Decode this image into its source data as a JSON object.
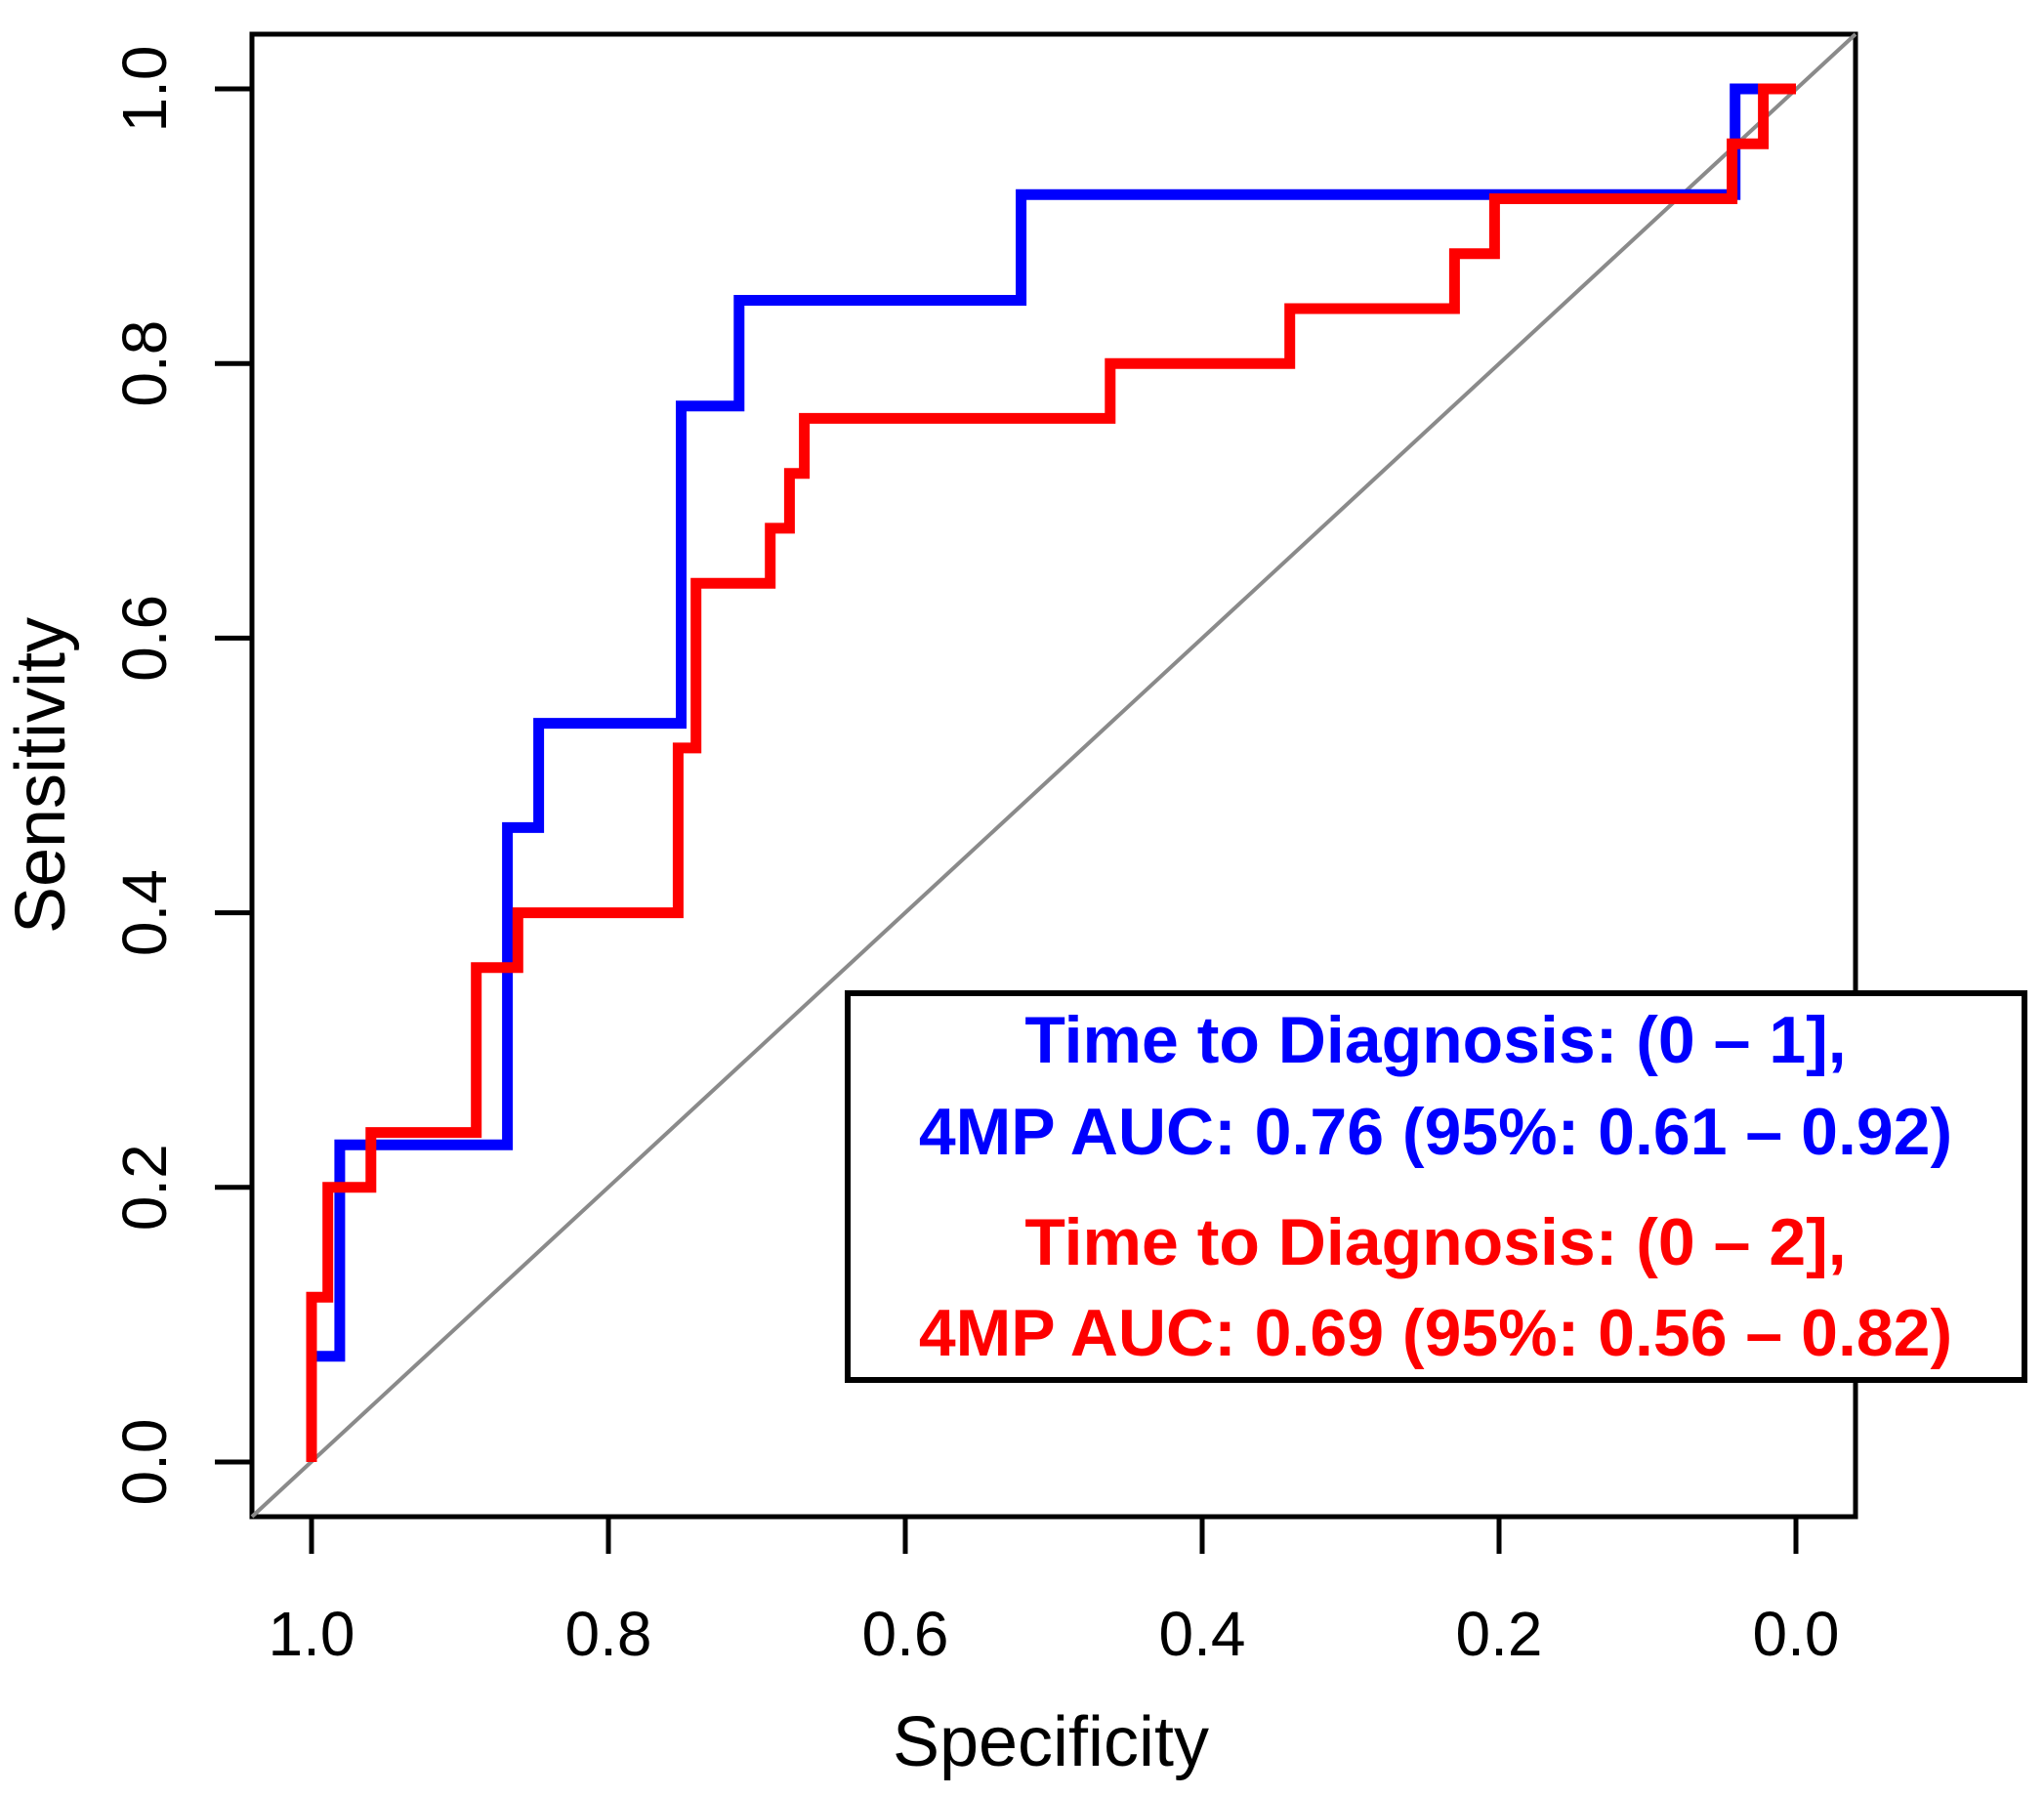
{
  "figure": {
    "background_color": "#FFFFFF",
    "axis_color": "#000000",
    "axes": {
      "x": {
        "label": "Specificity",
        "ticks": [
          "1.0",
          "0.8",
          "0.6",
          "0.4",
          "0.2",
          "0.0"
        ],
        "tick_values": [
          1.0,
          0.8,
          0.6,
          0.4,
          0.2,
          0.0
        ],
        "range": [
          1.0,
          0.0
        ],
        "reversed": true
      },
      "y": {
        "label": "Sensitivity",
        "ticks": [
          "0.0",
          "0.2",
          "0.4",
          "0.6",
          "0.8",
          "1.0"
        ],
        "tick_values": [
          0.0,
          0.2,
          0.4,
          0.6,
          0.8,
          1.0
        ],
        "range": [
          0.0,
          1.0
        ],
        "reversed": false
      }
    },
    "diagonal_line": {
      "color": "#8A8A8A",
      "description": "chance reference line"
    },
    "legend": {
      "fill": "#FFFFFF",
      "border_color": "#000000",
      "lines": [
        {
          "text": "Time to Diagnosis: (0 – 1],",
          "color": "#0000FE"
        },
        {
          "text": "4MP AUC: 0.76 (95%: 0.61 – 0.92)",
          "color": "#0000FE"
        },
        {
          "text": "Time to Diagnosis: (0 – 2],",
          "color": "#FE0000"
        },
        {
          "text": "4MP AUC: 0.69 (95%: 0.56 – 0.82)",
          "color": "#FE0000"
        }
      ]
    }
  },
  "chart_data": {
    "type": "line",
    "subtype": "roc-step-curves",
    "title": "",
    "xlabel": "Specificity",
    "ylabel": "Sensitivity",
    "xlim": [
      1.0,
      0.0
    ],
    "ylim": [
      0.0,
      1.0
    ],
    "grid": false,
    "legend_position": "lower-right",
    "diagonal_reference_line": true,
    "series": [
      {
        "name": "Time to Diagnosis (0 – 1]",
        "color": "#0000FE",
        "auc": 0.76,
        "ci_95": [
          0.61,
          0.92
        ],
        "points_specificity_sensitivity": [
          [
            1.0,
            0.0
          ],
          [
            1.0,
            0.077
          ],
          [
            0.981,
            0.077
          ],
          [
            0.981,
            0.231
          ],
          [
            0.868,
            0.231
          ],
          [
            0.868,
            0.462
          ],
          [
            0.847,
            0.462
          ],
          [
            0.847,
            0.538
          ],
          [
            0.751,
            0.538
          ],
          [
            0.751,
            0.769
          ],
          [
            0.712,
            0.769
          ],
          [
            0.712,
            0.846
          ],
          [
            0.522,
            0.846
          ],
          [
            0.522,
            0.923
          ],
          [
            0.041,
            0.923
          ],
          [
            0.041,
            1.0
          ],
          [
            0.0,
            1.0
          ]
        ]
      },
      {
        "name": "Time to Diagnosis (0 – 2]",
        "color": "#FE0000",
        "auc": 0.69,
        "ci_95": [
          0.56,
          0.82
        ],
        "points_specificity_sensitivity": [
          [
            1.0,
            0.0
          ],
          [
            1.0,
            0.12
          ],
          [
            0.989,
            0.12
          ],
          [
            0.989,
            0.2
          ],
          [
            0.96,
            0.2
          ],
          [
            0.96,
            0.24
          ],
          [
            0.889,
            0.24
          ],
          [
            0.889,
            0.36
          ],
          [
            0.861,
            0.36
          ],
          [
            0.861,
            0.4
          ],
          [
            0.753,
            0.4
          ],
          [
            0.753,
            0.52
          ],
          [
            0.741,
            0.52
          ],
          [
            0.741,
            0.64
          ],
          [
            0.691,
            0.64
          ],
          [
            0.691,
            0.68
          ],
          [
            0.678,
            0.68
          ],
          [
            0.678,
            0.72
          ],
          [
            0.668,
            0.72
          ],
          [
            0.668,
            0.76
          ],
          [
            0.462,
            0.76
          ],
          [
            0.462,
            0.8
          ],
          [
            0.341,
            0.8
          ],
          [
            0.341,
            0.84
          ],
          [
            0.23,
            0.84
          ],
          [
            0.23,
            0.88
          ],
          [
            0.203,
            0.88
          ],
          [
            0.203,
            0.92
          ],
          [
            0.043,
            0.92
          ],
          [
            0.043,
            0.96
          ],
          [
            0.022,
            0.96
          ],
          [
            0.022,
            1.0
          ],
          [
            0.0,
            1.0
          ]
        ]
      }
    ]
  }
}
